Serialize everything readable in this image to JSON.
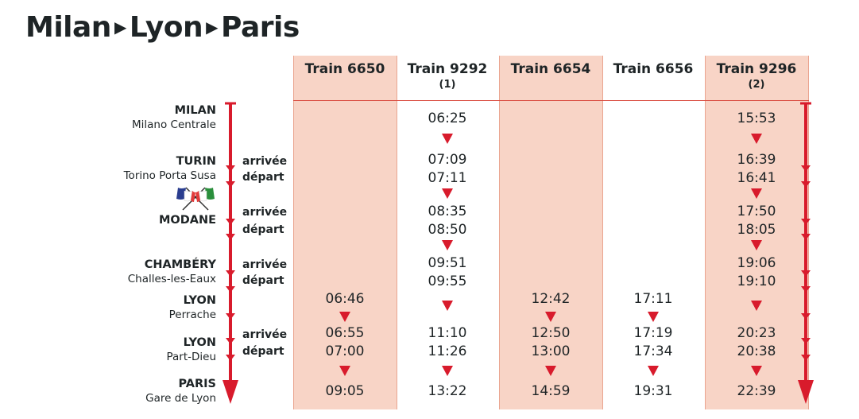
{
  "title": {
    "from": "Milan",
    "via": "Lyon",
    "to": "Paris",
    "sep": "▶"
  },
  "colors": {
    "accent": "#d81b2c",
    "band": "#f8d4c6",
    "text": "#1e2426"
  },
  "trains": [
    {
      "name": "Train 6650",
      "note": "",
      "shaded": true
    },
    {
      "name": "Train 9292",
      "note": "(1)",
      "shaded": false
    },
    {
      "name": "Train 6654",
      "note": "",
      "shaded": true
    },
    {
      "name": "Train 6656",
      "note": "",
      "shaded": false
    },
    {
      "name": "Train 9296",
      "note": "(2)",
      "shaded": true
    }
  ],
  "stations": [
    {
      "city": "MILAN",
      "sub": "Milano Centrale",
      "arr": "",
      "dep": ""
    },
    {
      "city": "TURIN",
      "sub": "Torino Porta Susa",
      "arr": "arrivée",
      "dep": "départ"
    },
    {
      "city": "MODANE",
      "sub": "",
      "arr": "arrivée",
      "dep": "départ"
    },
    {
      "city": "CHAMBÉRY",
      "sub": "Challes-les-Eaux",
      "arr": "arrivée",
      "dep": "départ"
    },
    {
      "city": "LYON",
      "sub": "Perrache",
      "arr": "",
      "dep": ""
    },
    {
      "city": "LYON",
      "sub": "Part-Dieu",
      "arr": "arrivée",
      "dep": "départ"
    },
    {
      "city": "PARIS",
      "sub": "Gare de Lyon",
      "arr": "",
      "dep": ""
    }
  ],
  "times": {
    "t6650": [
      "06:46",
      "06:55",
      "07:00",
      "09:05"
    ],
    "t9292": [
      "06:25",
      "07:09",
      "07:11",
      "08:35",
      "08:50",
      "09:51",
      "09:55",
      "11:10",
      "11:26",
      "13:22"
    ],
    "t6654": [
      "12:42",
      "12:50",
      "13:00",
      "14:59"
    ],
    "t6656": [
      "17:11",
      "17:19",
      "17:34",
      "19:31"
    ],
    "t9296": [
      "15:53",
      "16:39",
      "16:41",
      "17:50",
      "18:05",
      "19:06",
      "19:10",
      "20:23",
      "20:38",
      "22:39"
    ]
  },
  "flags_icon": "crossed-flags-france-italy"
}
